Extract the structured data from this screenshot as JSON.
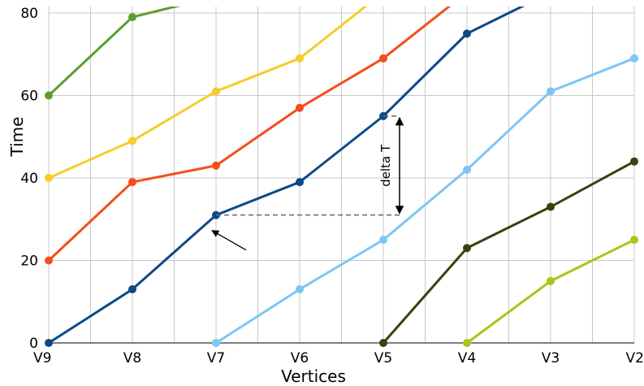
{
  "chart_data": {
    "type": "line",
    "xlabel": "Vertices",
    "ylabel": "Time",
    "categories": [
      "V9",
      "V8",
      "V7",
      "V6",
      "V5",
      "V4",
      "V3",
      "V2"
    ],
    "ylim": [
      0,
      80
    ],
    "yticks": [
      0,
      20,
      40,
      60,
      80
    ],
    "grid": true,
    "series": [
      {
        "color": "#5c9e2e",
        "values": [
          60,
          79,
          84,
          null,
          null,
          null,
          null,
          null
        ]
      },
      {
        "color": "#f5cd2b",
        "values": [
          40,
          49,
          61,
          69,
          85,
          null,
          null,
          null
        ]
      },
      {
        "color": "#f54d1c",
        "values": [
          20,
          39,
          43,
          57,
          69,
          85,
          null,
          null
        ]
      },
      {
        "color": "#0c4a87",
        "values": [
          0,
          13,
          31,
          39,
          55,
          75,
          85,
          null
        ]
      },
      {
        "color": "#7dc6f4",
        "values": [
          null,
          null,
          0,
          13,
          25,
          42,
          61,
          69
        ]
      },
      {
        "color": "#38420f",
        "values": [
          null,
          null,
          null,
          null,
          0,
          23,
          33,
          44
        ]
      },
      {
        "color": "#a3c914",
        "values": [
          null,
          null,
          null,
          null,
          null,
          0,
          15,
          25
        ]
      }
    ],
    "annotations": [
      {
        "text": "delta T",
        "type": "vertical-double-arrow",
        "at_x": "V5",
        "from_y": 31,
        "to_y": 55
      },
      {
        "type": "arrow",
        "points_to": {
          "x": "V7",
          "y": 31
        }
      }
    ]
  }
}
